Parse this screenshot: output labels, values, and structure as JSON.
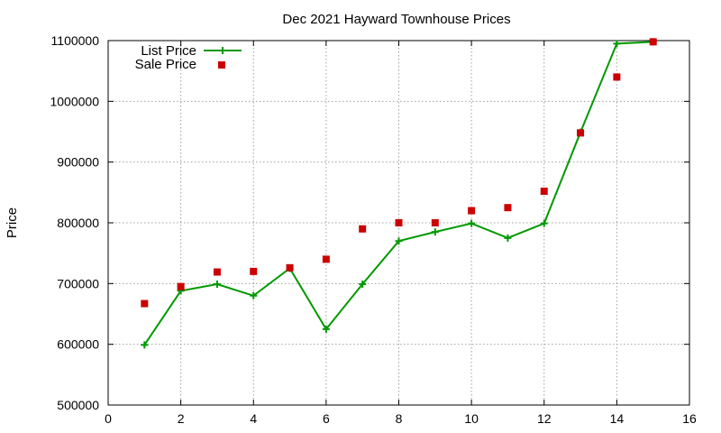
{
  "chart_data": {
    "type": "line",
    "title": "Dec 2021 Hayward Townhouse Prices",
    "xlabel": "",
    "ylabel": "Price",
    "xlim": [
      0,
      16
    ],
    "ylim": [
      500000,
      1100000
    ],
    "xticks": [
      0,
      2,
      4,
      6,
      8,
      10,
      12,
      14,
      16
    ],
    "yticks": [
      500000,
      600000,
      700000,
      800000,
      900000,
      1000000,
      1100000
    ],
    "grid": true,
    "legend_position": "top-left",
    "series": [
      {
        "name": "List Price",
        "style": "line-with-plus-markers",
        "color": "#009900",
        "x": [
          1,
          2,
          3,
          4,
          5,
          6,
          7,
          8,
          9,
          10,
          11,
          12,
          13,
          14,
          15
        ],
        "values": [
          599000,
          688000,
          699000,
          680000,
          725000,
          625000,
          699000,
          770000,
          785000,
          799000,
          775000,
          799000,
          949000,
          1095000,
          1098000
        ]
      },
      {
        "name": "Sale Price",
        "style": "square-markers",
        "color": "#cc0000",
        "x": [
          1,
          2,
          3,
          4,
          5,
          6,
          7,
          8,
          9,
          10,
          11,
          12,
          13,
          14,
          15
        ],
        "values": [
          667000,
          695000,
          719000,
          720000,
          726000,
          740000,
          790000,
          800000,
          800000,
          820000,
          825000,
          852000,
          948000,
          1040000,
          1098000
        ]
      }
    ]
  }
}
